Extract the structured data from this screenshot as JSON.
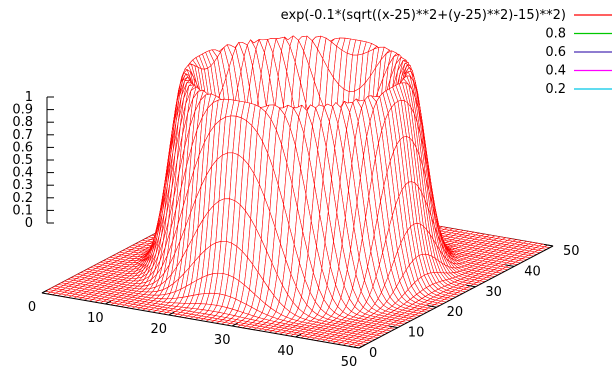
{
  "chart_data": {
    "type": "surface",
    "title": "",
    "x_range": [
      0,
      50
    ],
    "y_range": [
      0,
      50
    ],
    "z_range": [
      0,
      1
    ],
    "x_ticks": [
      "0",
      "10",
      "20",
      "30",
      "40",
      "50"
    ],
    "y_ticks": [
      "0",
      "10",
      "20",
      "30",
      "40",
      "50"
    ],
    "z_ticks": [
      "0",
      "0.1",
      "0.2",
      "0.3",
      "0.4",
      "0.5",
      "0.6",
      "0.7",
      "0.8",
      "0.9",
      "1"
    ],
    "surface": {
      "expression": "exp(-0.1*(sqrt((x-25)**2+(y-25)**2)-15)**2)",
      "ring_center": [
        25,
        25
      ],
      "ring_radius": 15,
      "color": "#ff0000"
    },
    "series": [
      {
        "name": "exp(-0.1*(sqrt((x-25)**2+(y-25)**2)-15)**2)",
        "color": "#ff0000"
      },
      {
        "name": "0.8",
        "color": "#00c800",
        "level": 0.8
      },
      {
        "name": "0.6",
        "color": "#4b2fb5",
        "level": 0.6
      },
      {
        "name": "0.4",
        "color": "#ff00ff",
        "level": 0.4
      },
      {
        "name": "0.2",
        "color": "#00c8e6",
        "level": 0.2
      }
    ],
    "legend_position": "top-right",
    "grid": false
  }
}
